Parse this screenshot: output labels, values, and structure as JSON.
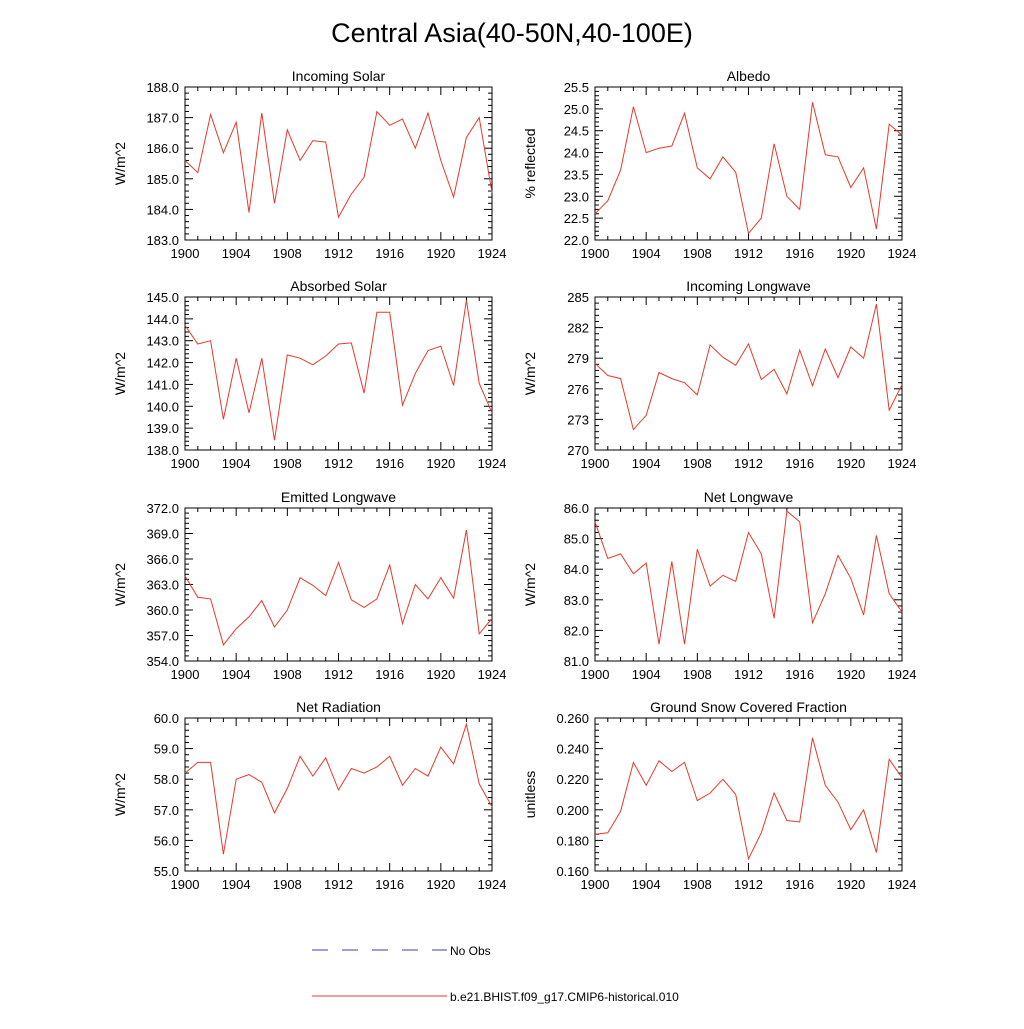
{
  "page_title": "Central Asia(40-50N,40-100E)",
  "legend": {
    "items": [
      {
        "label": "No Obs",
        "color": "#3b3bb4",
        "style": "dashed"
      },
      {
        "label": "b.e21.BHIST.f09_g17.CMIP6-historical.010",
        "color": "#e8392a",
        "style": "solid"
      }
    ]
  },
  "series_color": "#e8392a",
  "chart_data": [
    {
      "type": "line",
      "title": "Incoming Solar",
      "xlabel": "",
      "ylabel": "W/m^2",
      "xlim": [
        1900,
        1924
      ],
      "x_ticks": [
        "1900",
        "1904",
        "1908",
        "1912",
        "1916",
        "1920",
        "1924"
      ],
      "ylim": [
        183.0,
        188.0
      ],
      "y_ticks": [
        "183.0",
        "184.0",
        "185.0",
        "186.0",
        "187.0",
        "188.0"
      ],
      "x": [
        1900,
        1901,
        1902,
        1903,
        1904,
        1905,
        1906,
        1907,
        1908,
        1909,
        1910,
        1911,
        1912,
        1913,
        1914,
        1915,
        1916,
        1917,
        1918,
        1919,
        1920,
        1921,
        1922,
        1923,
        1924
      ],
      "values": [
        185.6,
        185.2,
        187.1,
        185.85,
        186.85,
        183.9,
        187.15,
        184.2,
        186.6,
        185.6,
        186.25,
        186.2,
        183.75,
        184.5,
        185.05,
        187.2,
        186.75,
        186.95,
        186.0,
        187.15,
        185.6,
        184.4,
        186.35,
        187.0,
        184.55
      ]
    },
    {
      "type": "line",
      "title": "Albedo",
      "xlabel": "",
      "ylabel": "% reflected",
      "xlim": [
        1900,
        1924
      ],
      "x_ticks": [
        "1900",
        "1904",
        "1908",
        "1912",
        "1916",
        "1920",
        "1924"
      ],
      "ylim": [
        22.0,
        25.5
      ],
      "y_ticks": [
        "22.0",
        "22.5",
        "23.0",
        "23.5",
        "24.0",
        "24.5",
        "25.0",
        "25.5"
      ],
      "x": [
        1900,
        1901,
        1902,
        1903,
        1904,
        1905,
        1906,
        1907,
        1908,
        1909,
        1910,
        1911,
        1912,
        1913,
        1914,
        1915,
        1916,
        1917,
        1918,
        1919,
        1920,
        1921,
        1922,
        1923,
        1924
      ],
      "values": [
        22.6,
        22.9,
        23.6,
        25.05,
        24.0,
        24.1,
        24.15,
        24.9,
        23.65,
        23.4,
        23.9,
        23.55,
        22.15,
        22.5,
        24.2,
        23.0,
        22.7,
        25.15,
        23.95,
        23.9,
        23.2,
        23.65,
        22.25,
        24.65,
        24.4
      ]
    },
    {
      "type": "line",
      "title": "Absorbed Solar",
      "xlabel": "",
      "ylabel": "W/m^2",
      "xlim": [
        1900,
        1924
      ],
      "x_ticks": [
        "1900",
        "1904",
        "1908",
        "1912",
        "1916",
        "1920",
        "1924"
      ],
      "ylim": [
        138.0,
        145.0
      ],
      "y_ticks": [
        "138.0",
        "139.0",
        "140.0",
        "141.0",
        "142.0",
        "143.0",
        "144.0",
        "145.0"
      ],
      "x": [
        1900,
        1901,
        1902,
        1903,
        1904,
        1905,
        1906,
        1907,
        1908,
        1909,
        1910,
        1911,
        1912,
        1913,
        1914,
        1915,
        1916,
        1917,
        1918,
        1919,
        1920,
        1921,
        1922,
        1923,
        1924
      ],
      "values": [
        143.7,
        142.85,
        143.0,
        139.4,
        142.2,
        139.7,
        142.2,
        138.45,
        142.35,
        142.2,
        141.9,
        142.3,
        142.85,
        142.9,
        140.6,
        144.3,
        144.3,
        140.05,
        141.5,
        142.55,
        142.75,
        140.95,
        144.85,
        141.05,
        139.7
      ]
    },
    {
      "type": "line",
      "title": "Incoming Longwave",
      "xlabel": "",
      "ylabel": "W/m^2",
      "xlim": [
        1900,
        1924
      ],
      "x_ticks": [
        "1900",
        "1904",
        "1908",
        "1912",
        "1916",
        "1920",
        "1924"
      ],
      "ylim": [
        270,
        285
      ],
      "y_ticks": [
        "270",
        "273",
        "276",
        "279",
        "282",
        "285"
      ],
      "x": [
        1900,
        1901,
        1902,
        1903,
        1904,
        1905,
        1906,
        1907,
        1908,
        1909,
        1910,
        1911,
        1912,
        1913,
        1914,
        1915,
        1916,
        1917,
        1918,
        1919,
        1920,
        1921,
        1922,
        1923,
        1924
      ],
      "values": [
        278.5,
        277.3,
        277.0,
        272.0,
        273.4,
        277.6,
        277.0,
        276.6,
        275.4,
        280.3,
        279.1,
        278.3,
        280.4,
        276.9,
        277.9,
        275.5,
        279.8,
        276.3,
        279.9,
        277.1,
        280.1,
        279.0,
        284.3,
        273.9,
        276.4
      ]
    },
    {
      "type": "line",
      "title": "Emitted Longwave",
      "xlabel": "",
      "ylabel": "W/m^2",
      "xlim": [
        1900,
        1924
      ],
      "x_ticks": [
        "1900",
        "1904",
        "1908",
        "1912",
        "1916",
        "1920",
        "1924"
      ],
      "ylim": [
        354.0,
        372.0
      ],
      "y_ticks": [
        "354.0",
        "357.0",
        "360.0",
        "363.0",
        "366.0",
        "369.0",
        "372.0"
      ],
      "x": [
        1900,
        1901,
        1902,
        1903,
        1904,
        1905,
        1906,
        1907,
        1908,
        1909,
        1910,
        1911,
        1912,
        1913,
        1914,
        1915,
        1916,
        1917,
        1918,
        1919,
        1920,
        1921,
        1922,
        1923,
        1924
      ],
      "values": [
        364.0,
        361.5,
        361.3,
        355.9,
        357.8,
        359.2,
        361.1,
        358.0,
        360.0,
        363.8,
        362.9,
        361.7,
        365.6,
        361.2,
        360.3,
        361.3,
        365.3,
        358.4,
        363.0,
        361.3,
        363.8,
        361.4,
        369.4,
        357.2,
        359.0
      ]
    },
    {
      "type": "line",
      "title": "Net Longwave",
      "xlabel": "",
      "ylabel": "W/m^2",
      "xlim": [
        1900,
        1924
      ],
      "x_ticks": [
        "1900",
        "1904",
        "1908",
        "1912",
        "1916",
        "1920",
        "1924"
      ],
      "ylim": [
        81.0,
        86.0
      ],
      "y_ticks": [
        "81.0",
        "82.0",
        "83.0",
        "84.0",
        "85.0",
        "86.0"
      ],
      "x": [
        1900,
        1901,
        1902,
        1903,
        1904,
        1905,
        1906,
        1907,
        1908,
        1909,
        1910,
        1911,
        1912,
        1913,
        1914,
        1915,
        1916,
        1917,
        1918,
        1919,
        1920,
        1921,
        1922,
        1923,
        1924
      ],
      "values": [
        85.55,
        84.35,
        84.5,
        83.85,
        84.2,
        81.55,
        84.25,
        81.55,
        84.65,
        83.45,
        83.8,
        83.6,
        85.2,
        84.5,
        82.4,
        85.9,
        85.55,
        82.25,
        83.2,
        84.45,
        83.7,
        82.5,
        85.1,
        83.2,
        82.6
      ]
    },
    {
      "type": "line",
      "title": "Net Radiation",
      "xlabel": "",
      "ylabel": "W/m^2",
      "xlim": [
        1900,
        1924
      ],
      "x_ticks": [
        "1900",
        "1904",
        "1908",
        "1912",
        "1916",
        "1920",
        "1924"
      ],
      "ylim": [
        55.0,
        60.0
      ],
      "y_ticks": [
        "55.0",
        "56.0",
        "57.0",
        "58.0",
        "59.0",
        "60.0"
      ],
      "x": [
        1900,
        1901,
        1902,
        1903,
        1904,
        1905,
        1906,
        1907,
        1908,
        1909,
        1910,
        1911,
        1912,
        1913,
        1914,
        1915,
        1916,
        1917,
        1918,
        1919,
        1920,
        1921,
        1922,
        1923,
        1924
      ],
      "values": [
        58.2,
        58.55,
        58.55,
        55.55,
        58.0,
        58.15,
        57.9,
        56.9,
        57.7,
        58.75,
        58.1,
        58.7,
        57.65,
        58.35,
        58.2,
        58.4,
        58.75,
        57.8,
        58.35,
        58.1,
        59.05,
        58.5,
        59.8,
        57.85,
        57.1
      ]
    },
    {
      "type": "line",
      "title": "Ground Snow Covered Fraction",
      "xlabel": "",
      "ylabel": "unitless",
      "xlim": [
        1900,
        1924
      ],
      "x_ticks": [
        "1900",
        "1904",
        "1908",
        "1912",
        "1916",
        "1920",
        "1924"
      ],
      "ylim": [
        0.16,
        0.26
      ],
      "y_ticks": [
        "0.160",
        "0.180",
        "0.200",
        "0.220",
        "0.240",
        "0.260"
      ],
      "x": [
        1900,
        1901,
        1902,
        1903,
        1904,
        1905,
        1906,
        1907,
        1908,
        1909,
        1910,
        1911,
        1912,
        1913,
        1914,
        1915,
        1916,
        1917,
        1918,
        1919,
        1920,
        1921,
        1922,
        1923,
        1924
      ],
      "values": [
        0.184,
        0.185,
        0.199,
        0.231,
        0.216,
        0.232,
        0.225,
        0.231,
        0.206,
        0.211,
        0.22,
        0.21,
        0.168,
        0.185,
        0.211,
        0.193,
        0.192,
        0.247,
        0.216,
        0.205,
        0.187,
        0.2,
        0.172,
        0.233,
        0.221
      ]
    }
  ]
}
